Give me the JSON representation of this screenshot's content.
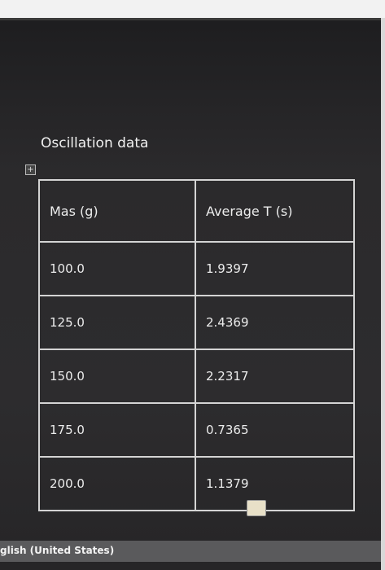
{
  "document": {
    "title": "Oscillation data",
    "table": {
      "header": [
        "Mas (g)",
        "Average T (s)"
      ],
      "rows": [
        [
          "100.0",
          "1.9397"
        ],
        [
          "125.0",
          "2.4369"
        ],
        [
          "150.0",
          "2.2317"
        ],
        [
          "175.0",
          "0.7365"
        ],
        [
          "200.0",
          "1.1379"
        ]
      ]
    }
  },
  "status_bar": {
    "language": "glish (United States)"
  }
}
